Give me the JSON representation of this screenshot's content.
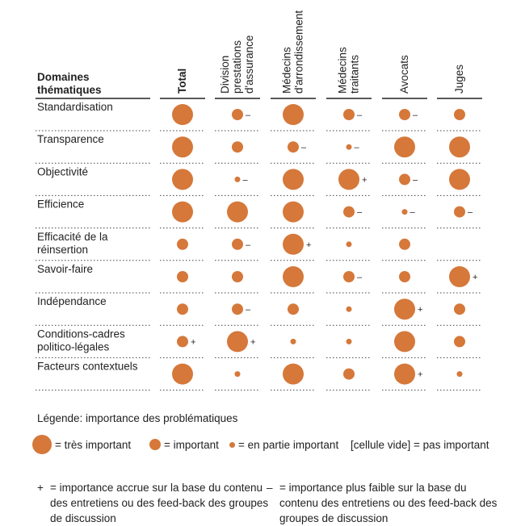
{
  "chart_data": {
    "type": "bubble-matrix",
    "row_header": "Domaines thématiques",
    "columns": [
      {
        "label": "Total",
        "lines": [
          "Total"
        ],
        "bold": true
      },
      {
        "label": "Division prestations d'assurance",
        "lines": [
          "Division",
          "prestations",
          "d'assurance"
        ]
      },
      {
        "label": "Médecins d'arrondissement",
        "lines": [
          "Médecins",
          "d'arrondissement"
        ]
      },
      {
        "label": "Médecins traitants",
        "lines": [
          "Médecins",
          "traitants"
        ]
      },
      {
        "label": "Avocats",
        "lines": [
          "Avocats"
        ]
      },
      {
        "label": "Juges",
        "lines": [
          "Juges"
        ]
      }
    ],
    "rows": [
      {
        "label": "Standardisation",
        "lines": [
          "Standardisation"
        ]
      },
      {
        "label": "Transparence",
        "lines": [
          "Transparence"
        ]
      },
      {
        "label": "Objectivité",
        "lines": [
          "Objectivité"
        ]
      },
      {
        "label": "Efficience",
        "lines": [
          "Efficience"
        ]
      },
      {
        "label": "Efficacité de la réinsertion",
        "lines": [
          "Efficacité de la",
          "réinsertion"
        ]
      },
      {
        "label": "Savoir-faire",
        "lines": [
          "Savoir-faire"
        ]
      },
      {
        "label": "Indépendance",
        "lines": [
          "Indépendance"
        ]
      },
      {
        "label": "Conditions-cadres politico-légales",
        "lines": [
          "Conditions-cadres",
          "politico-légales"
        ]
      },
      {
        "label": "Facteurs contextuels",
        "lines": [
          "Facteurs contextuels"
        ]
      }
    ],
    "levels": {
      "3": "très important",
      "2": "important",
      "1": "en partie important",
      "0": "pas important"
    },
    "cells": [
      [
        {
          "v": 3,
          "m": ""
        },
        {
          "v": 2,
          "m": "–"
        },
        {
          "v": 3,
          "m": ""
        },
        {
          "v": 2,
          "m": "–"
        },
        {
          "v": 2,
          "m": "–"
        },
        {
          "v": 2,
          "m": ""
        }
      ],
      [
        {
          "v": 3,
          "m": ""
        },
        {
          "v": 2,
          "m": ""
        },
        {
          "v": 2,
          "m": "–"
        },
        {
          "v": 1,
          "m": "–"
        },
        {
          "v": 3,
          "m": ""
        },
        {
          "v": 3,
          "m": ""
        }
      ],
      [
        {
          "v": 3,
          "m": ""
        },
        {
          "v": 1,
          "m": "–"
        },
        {
          "v": 3,
          "m": ""
        },
        {
          "v": 3,
          "m": "+"
        },
        {
          "v": 2,
          "m": "–"
        },
        {
          "v": 3,
          "m": ""
        }
      ],
      [
        {
          "v": 3,
          "m": ""
        },
        {
          "v": 3,
          "m": ""
        },
        {
          "v": 3,
          "m": ""
        },
        {
          "v": 2,
          "m": "–"
        },
        {
          "v": 1,
          "m": "–"
        },
        {
          "v": 2,
          "m": "–"
        }
      ],
      [
        {
          "v": 2,
          "m": ""
        },
        {
          "v": 2,
          "m": "–"
        },
        {
          "v": 3,
          "m": "+"
        },
        {
          "v": 1,
          "m": ""
        },
        {
          "v": 2,
          "m": ""
        },
        {
          "v": 0,
          "m": ""
        }
      ],
      [
        {
          "v": 2,
          "m": ""
        },
        {
          "v": 2,
          "m": ""
        },
        {
          "v": 3,
          "m": ""
        },
        {
          "v": 2,
          "m": "–"
        },
        {
          "v": 2,
          "m": ""
        },
        {
          "v": 3,
          "m": "+"
        }
      ],
      [
        {
          "v": 2,
          "m": ""
        },
        {
          "v": 2,
          "m": "–"
        },
        {
          "v": 2,
          "m": ""
        },
        {
          "v": 1,
          "m": ""
        },
        {
          "v": 3,
          "m": "+"
        },
        {
          "v": 2,
          "m": ""
        }
      ],
      [
        {
          "v": 2,
          "m": "+"
        },
        {
          "v": 3,
          "m": "+"
        },
        {
          "v": 1,
          "m": ""
        },
        {
          "v": 1,
          "m": ""
        },
        {
          "v": 3,
          "m": ""
        },
        {
          "v": 2,
          "m": ""
        }
      ],
      [
        {
          "v": 3,
          "m": ""
        },
        {
          "v": 1,
          "m": ""
        },
        {
          "v": 3,
          "m": ""
        },
        {
          "v": 2,
          "m": ""
        },
        {
          "v": 3,
          "m": "+"
        },
        {
          "v": 1,
          "m": ""
        }
      ]
    ]
  },
  "colors": {
    "bubble": "#d5783a",
    "text": "#222222"
  },
  "legend": {
    "title": "Légende: importance des problématiques",
    "very_important": "= très important",
    "important": "= important",
    "partly_important": "= en partie important",
    "not_important": "[cellule vide] = pas important"
  },
  "notes": {
    "plus_symbol": "+",
    "plus_text": "= importance accrue sur la base du contenu des entretiens ou des feed-back des groupes de discussion",
    "minus_symbol": "–",
    "minus_text": "= importance plus faible sur la base du contenu des entretiens ou des feed-back des groupes de discussion"
  }
}
